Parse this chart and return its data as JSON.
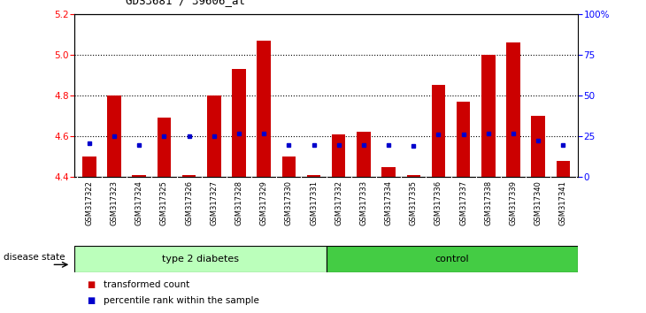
{
  "title": "GDS3681 / 39606_at",
  "samples": [
    "GSM317322",
    "GSM317323",
    "GSM317324",
    "GSM317325",
    "GSM317326",
    "GSM317327",
    "GSM317328",
    "GSM317329",
    "GSM317330",
    "GSM317331",
    "GSM317332",
    "GSM317333",
    "GSM317334",
    "GSM317335",
    "GSM317336",
    "GSM317337",
    "GSM317338",
    "GSM317339",
    "GSM317340",
    "GSM317341"
  ],
  "transformed_count": [
    4.5,
    4.8,
    4.41,
    4.69,
    4.41,
    4.8,
    4.93,
    5.07,
    4.5,
    4.41,
    4.61,
    4.62,
    4.45,
    4.41,
    4.85,
    4.77,
    5.0,
    5.06,
    4.7,
    4.48
  ],
  "percentile_rank": [
    4.565,
    4.6,
    4.558,
    4.6,
    4.6,
    4.6,
    4.615,
    4.615,
    4.555,
    4.555,
    4.558,
    4.558,
    4.558,
    4.553,
    4.61,
    4.61,
    4.615,
    4.615,
    4.58,
    4.555
  ],
  "group_labels": [
    "type 2 diabetes",
    "control"
  ],
  "group_split": 10,
  "ylim_left": [
    4.4,
    5.2
  ],
  "ylim_right": [
    0,
    100
  ],
  "yticks_left": [
    4.4,
    4.6,
    4.8,
    5.0,
    5.2
  ],
  "yticks_right": [
    0,
    25,
    50,
    75,
    100
  ],
  "bar_color": "#cc0000",
  "dot_color": "#0000cc",
  "tick_bg_color": "#c8c8c8",
  "group1_color": "#bbffbb",
  "group2_color": "#44cc44",
  "legend_bar_label": "transformed count",
  "legend_dot_label": "percentile rank within the sample",
  "disease_state_label": "disease state"
}
